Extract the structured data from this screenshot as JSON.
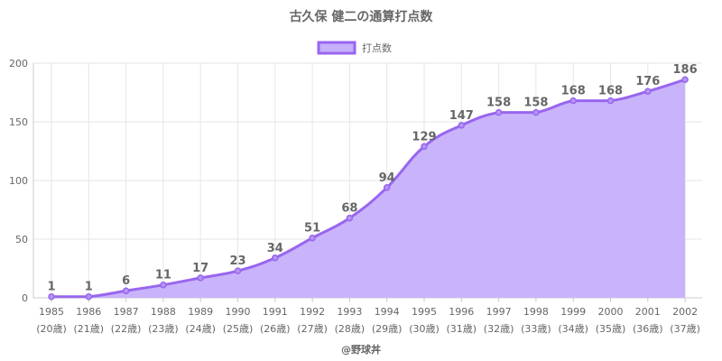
{
  "chart_data": {
    "type": "area",
    "title": "古久保 健二の通算打点数",
    "legend": {
      "position": "top",
      "label": "打点数"
    },
    "x": [
      "1985",
      "1986",
      "1987",
      "1988",
      "1989",
      "1990",
      "1991",
      "1992",
      "1993",
      "1994",
      "1995",
      "1996",
      "1997",
      "1998",
      "1999",
      "2000",
      "2001",
      "2002"
    ],
    "x_sub": [
      "(20歳)",
      "(21歳)",
      "(22歳)",
      "(23歳)",
      "(24歳)",
      "(25歳)",
      "(26歳)",
      "(27歳)",
      "(28歳)",
      "(29歳)",
      "(30歳)",
      "(31歳)",
      "(32歳)",
      "(33歳)",
      "(34歳)",
      "(35歳)",
      "(36歳)",
      "(37歳)"
    ],
    "series": [
      {
        "name": "打点数",
        "values": [
          1,
          1,
          6,
          11,
          17,
          23,
          34,
          51,
          68,
          94,
          129,
          147,
          158,
          158,
          168,
          168,
          176,
          186
        ]
      }
    ],
    "ylim": [
      0,
      200
    ],
    "yticks": [
      0,
      50,
      100,
      150,
      200
    ],
    "grid": true,
    "colors": {
      "line": "#9966ee",
      "fill": "#c6b0fb",
      "grid": "#e6e6e6",
      "text": "#666666"
    }
  },
  "footer": "@野球丼"
}
